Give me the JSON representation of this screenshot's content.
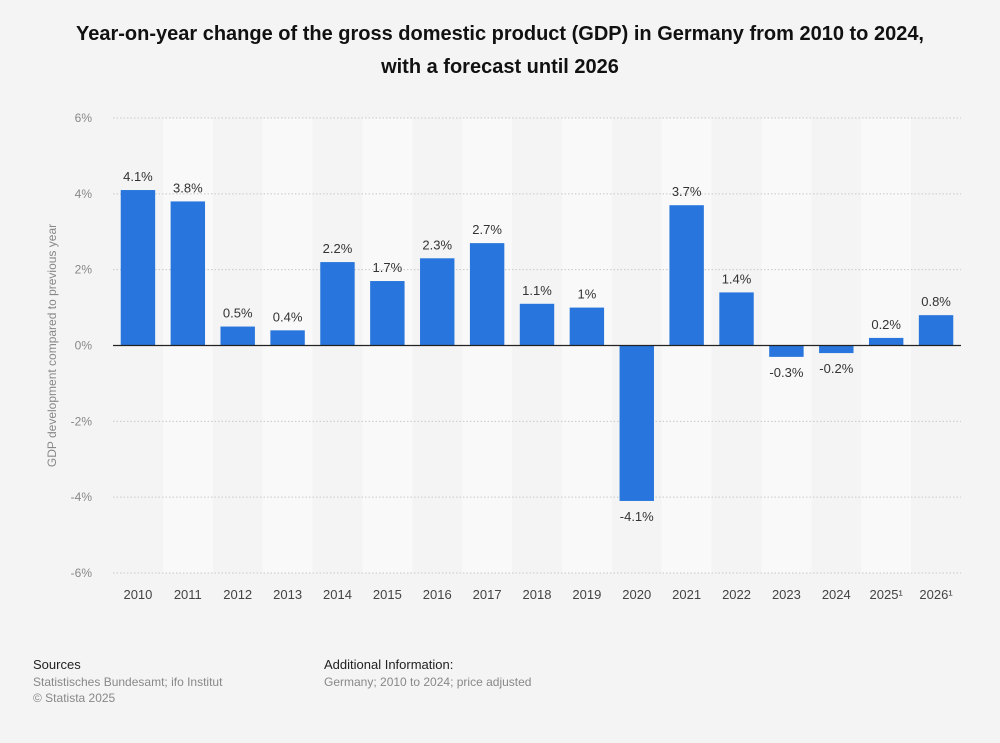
{
  "chart_data": {
    "type": "bar",
    "title": "Year-on-year change of the gross domestic product (GDP) in Germany from 2010 to 2024, with a forecast until 2026",
    "xlabel": "",
    "ylabel": "GDP development compared to previous year",
    "ylim": [
      -6,
      6
    ],
    "yticks": [
      6,
      4,
      2,
      0,
      -2,
      -4,
      -6
    ],
    "ytick_labels": [
      "6%",
      "4%",
      "2%",
      "0%",
      "-2%",
      "-4%",
      "-6%"
    ],
    "grid": true,
    "categories": [
      "2010",
      "2011",
      "2012",
      "2013",
      "2014",
      "2015",
      "2016",
      "2017",
      "2018",
      "2019",
      "2020",
      "2021",
      "2022",
      "2023",
      "2024",
      "2025¹",
      "2026¹"
    ],
    "values": [
      4.1,
      3.8,
      0.5,
      0.4,
      2.2,
      1.7,
      2.3,
      2.7,
      1.1,
      1.0,
      -4.1,
      3.7,
      1.4,
      -0.3,
      -0.2,
      0.2,
      0.8
    ],
    "data_labels": [
      "4.1%",
      "3.8%",
      "0.5%",
      "0.4%",
      "2.2%",
      "1.7%",
      "2.3%",
      "2.7%",
      "1.1%",
      "1%",
      "-4.1%",
      "3.7%",
      "1.4%",
      "-0.3%",
      "-0.2%",
      "0.2%",
      "0.8%"
    ],
    "bar_color": "#2876dd"
  },
  "footer": {
    "sources_heading": "Sources",
    "sources_line1": "Statistisches Bundesamt; ifo Institut",
    "sources_line2": "© Statista 2025",
    "additional_heading": "Additional Information:",
    "additional_line": "Germany; 2010 to 2024; price adjusted"
  }
}
